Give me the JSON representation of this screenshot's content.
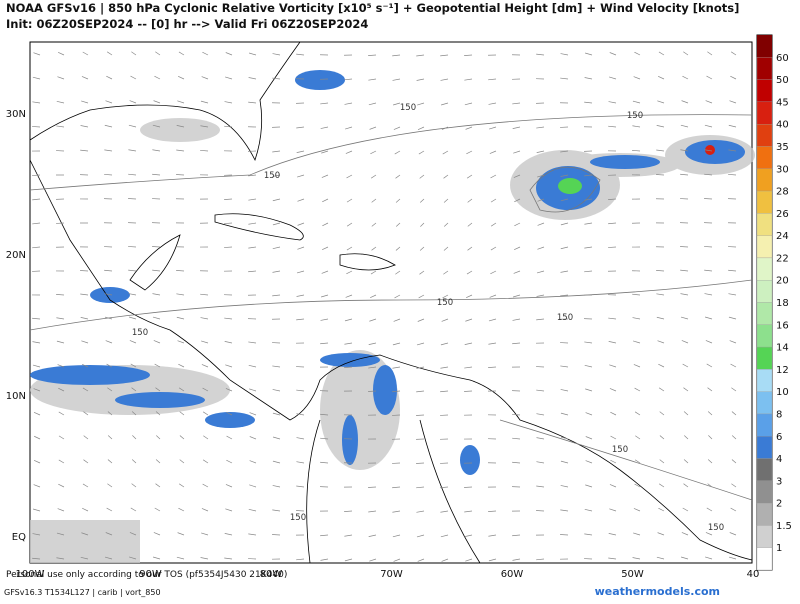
{
  "header": {
    "title": "NOAA GFSv16 | 850 hPa Cyclonic Relative Vorticity [x10⁵ s⁻¹] + Geopotential Height [dm] + Wind Velocity [knots]",
    "subtitle": "Init: 06Z20SEP2024 -- [0] hr --> Valid Fri 06Z20SEP2024"
  },
  "map": {
    "lat_labels": [
      "30N",
      "20N",
      "10N",
      "EQ"
    ],
    "lon_labels": [
      "100W",
      "90W",
      "80W",
      "70W",
      "60W",
      "50W",
      "40"
    ],
    "contour_labels": [
      "150",
      "150",
      "150",
      "150",
      "150",
      "150",
      "150",
      "150",
      "150"
    ]
  },
  "colorbar": {
    "labels": [
      "60",
      "50",
      "45",
      "40",
      "35",
      "30",
      "28",
      "26",
      "24",
      "22",
      "20",
      "18",
      "16",
      "14",
      "12",
      "10",
      "8",
      "6",
      "4",
      "3",
      "2",
      "1.5",
      "1"
    ],
    "colors": [
      "#a00000",
      "#c00000",
      "#d82010",
      "#e04010",
      "#f07010",
      "#f0a020",
      "#f0c040",
      "#f0e080",
      "#f5f0b0",
      "#e0f5c8",
      "#cdf0c0",
      "#b0e8a8",
      "#8de08d",
      "#55d455",
      "#a8dcf5",
      "#7cc0f0",
      "#5aa0e8",
      "#3a7bd5",
      "#707070",
      "#909090",
      "#b0b0b0",
      "#d0d0d0",
      "#ffffff"
    ],
    "top_color": "#800000"
  },
  "footer": {
    "model": "GFSv16.3 T1534L127 | carib | vort_850",
    "notice": "Personal use only according to our TOS (pf5354J5430 21K440)",
    "site": "weathermodels.com"
  }
}
